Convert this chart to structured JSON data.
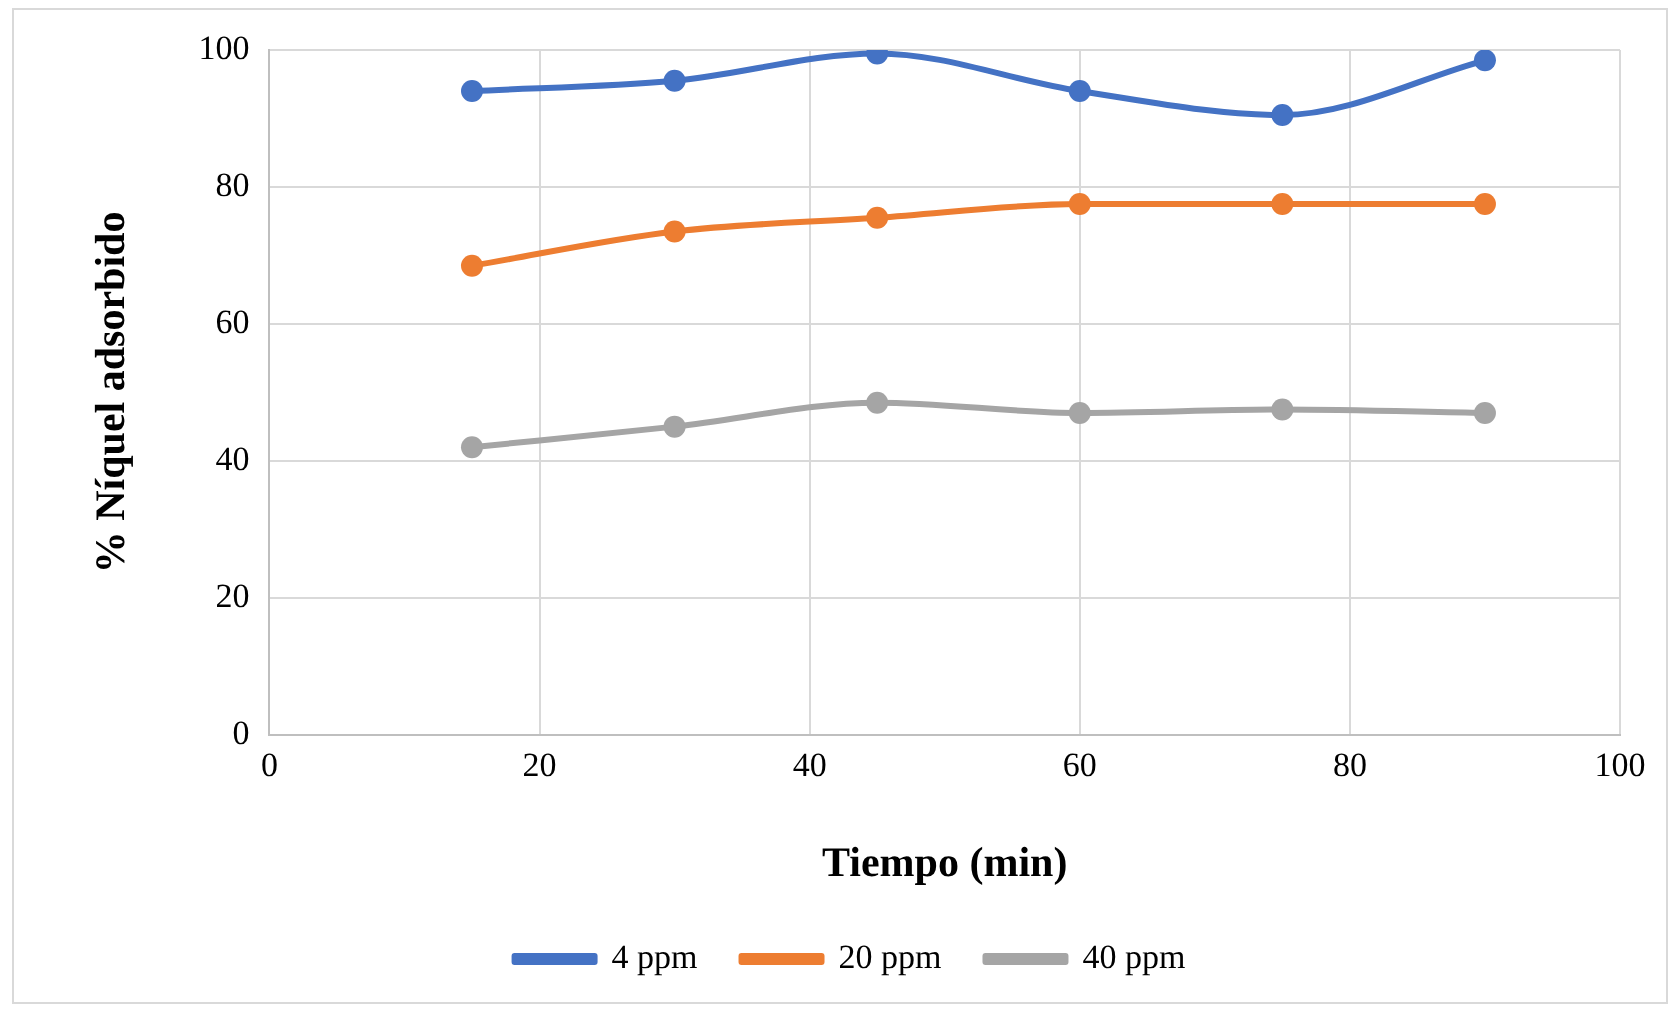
{
  "chart_data": {
    "type": "line",
    "xlabel": "Tiempo (min)",
    "ylabel": "% Níquel adsorbido",
    "x": [
      15,
      30,
      45,
      60,
      75,
      90
    ],
    "series": [
      {
        "name": "4 ppm",
        "color": "#4472c4",
        "values": [
          94,
          95.5,
          99.5,
          94,
          90.5,
          98.5
        ]
      },
      {
        "name": "20 ppm",
        "color": "#ed7d31",
        "values": [
          68.5,
          73.5,
          75.5,
          77.5,
          77.5,
          77.5
        ]
      },
      {
        "name": "40 ppm",
        "color": "#a5a5a5",
        "values": [
          42,
          45,
          48.5,
          47,
          47.5,
          47
        ]
      }
    ],
    "xlim": [
      0,
      100
    ],
    "xticks": [
      0,
      20,
      40,
      60,
      80,
      100
    ],
    "ylim": [
      0,
      100
    ],
    "yticks": [
      0,
      20,
      40,
      60,
      80,
      100
    ],
    "grid": true,
    "legend": "bottom",
    "marker": "circle",
    "line_style": "solid"
  }
}
